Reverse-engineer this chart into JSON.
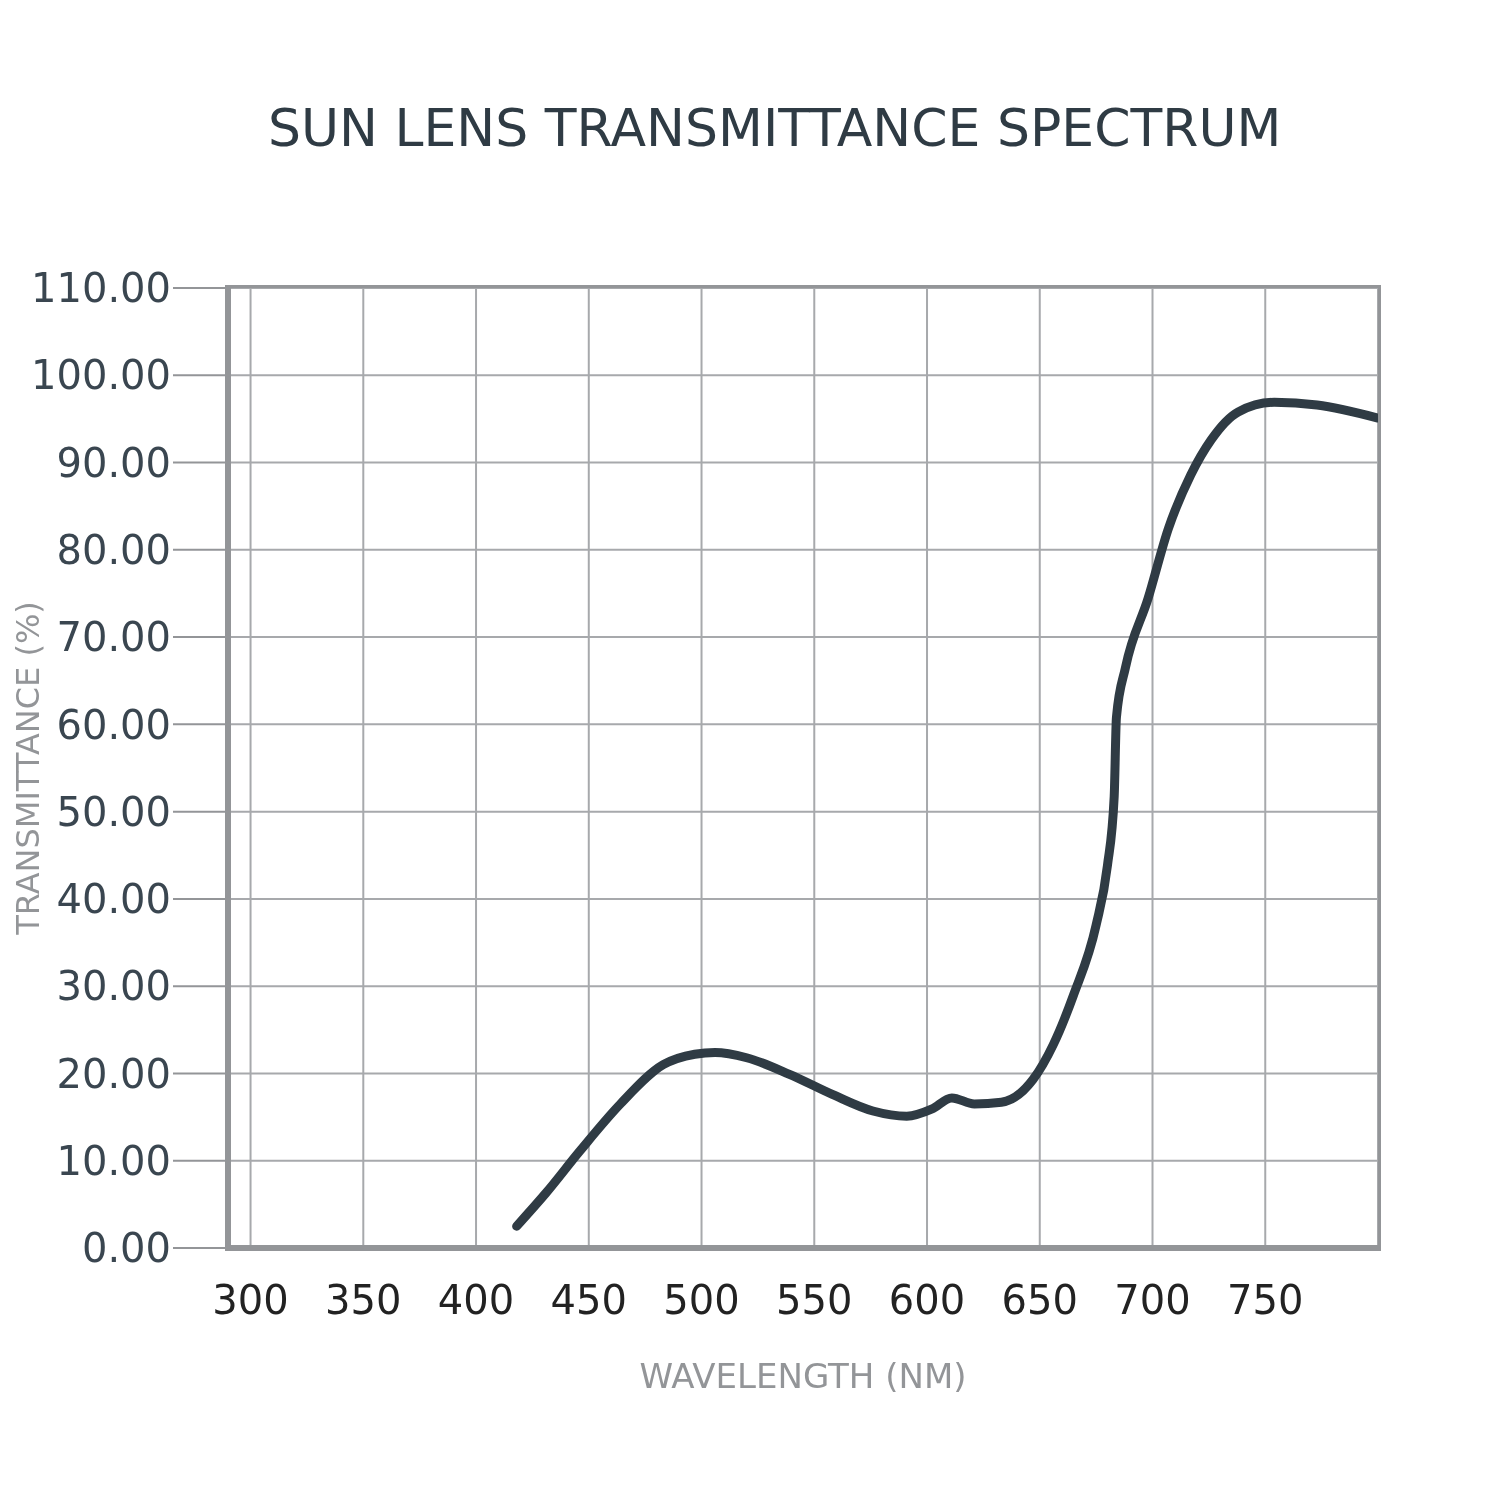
{
  "chart_data": {
    "type": "line",
    "title": "SUN LENS TRANSMITTANCE SPECTRUM",
    "xlabel": "WAVELENGTH (NM)",
    "ylabel": "TRANSMITTANCE (%)",
    "series": [
      {
        "color": "#2f3b44",
        "x": [
          418,
          431,
          446,
          464,
          483,
          497,
          506,
          520,
          539,
          558,
          576,
          591,
          602,
          611,
          621,
          633,
          647,
          656,
          665,
          675,
          680,
          683,
          684,
          688,
          698,
          707,
          717,
          726,
          738,
          754,
          773,
          800
        ],
        "values": [
          2.5,
          6.3,
          11.1,
          16.5,
          21,
          22.2,
          22.4,
          21.8,
          19.9,
          17.6,
          15.7,
          15.1,
          15.9,
          17.2,
          16.5,
          16.7,
          19.3,
          23.3,
          29,
          37,
          43.8,
          51.7,
          60.8,
          66.5,
          74.4,
          82.4,
          88.6,
          92.6,
          95.8,
          96.9,
          96.6,
          95.1
        ]
      }
    ],
    "xlim": [
      290,
      800
    ],
    "xticks": [
      300,
      350,
      400,
      450,
      500,
      550,
      600,
      650,
      700,
      750
    ],
    "ylim": [
      0,
      110
    ],
    "yticks": [
      {
        "value": 0,
        "label": "0.00"
      },
      {
        "value": 10,
        "label": "10.00"
      },
      {
        "value": 20,
        "label": "20.00"
      },
      {
        "value": 30,
        "label": "30.00"
      },
      {
        "value": 40,
        "label": "40.00"
      },
      {
        "value": 50,
        "label": "50.00"
      },
      {
        "value": 60,
        "label": "60.00"
      },
      {
        "value": 70,
        "label": "70.00"
      },
      {
        "value": 80,
        "label": "80.00"
      },
      {
        "value": 90,
        "label": "90.00"
      },
      {
        "value": 100,
        "label": "100.00"
      },
      {
        "value": 110,
        "label": "110.00"
      }
    ],
    "grid": true,
    "marker": "none",
    "line_style": "solid"
  }
}
